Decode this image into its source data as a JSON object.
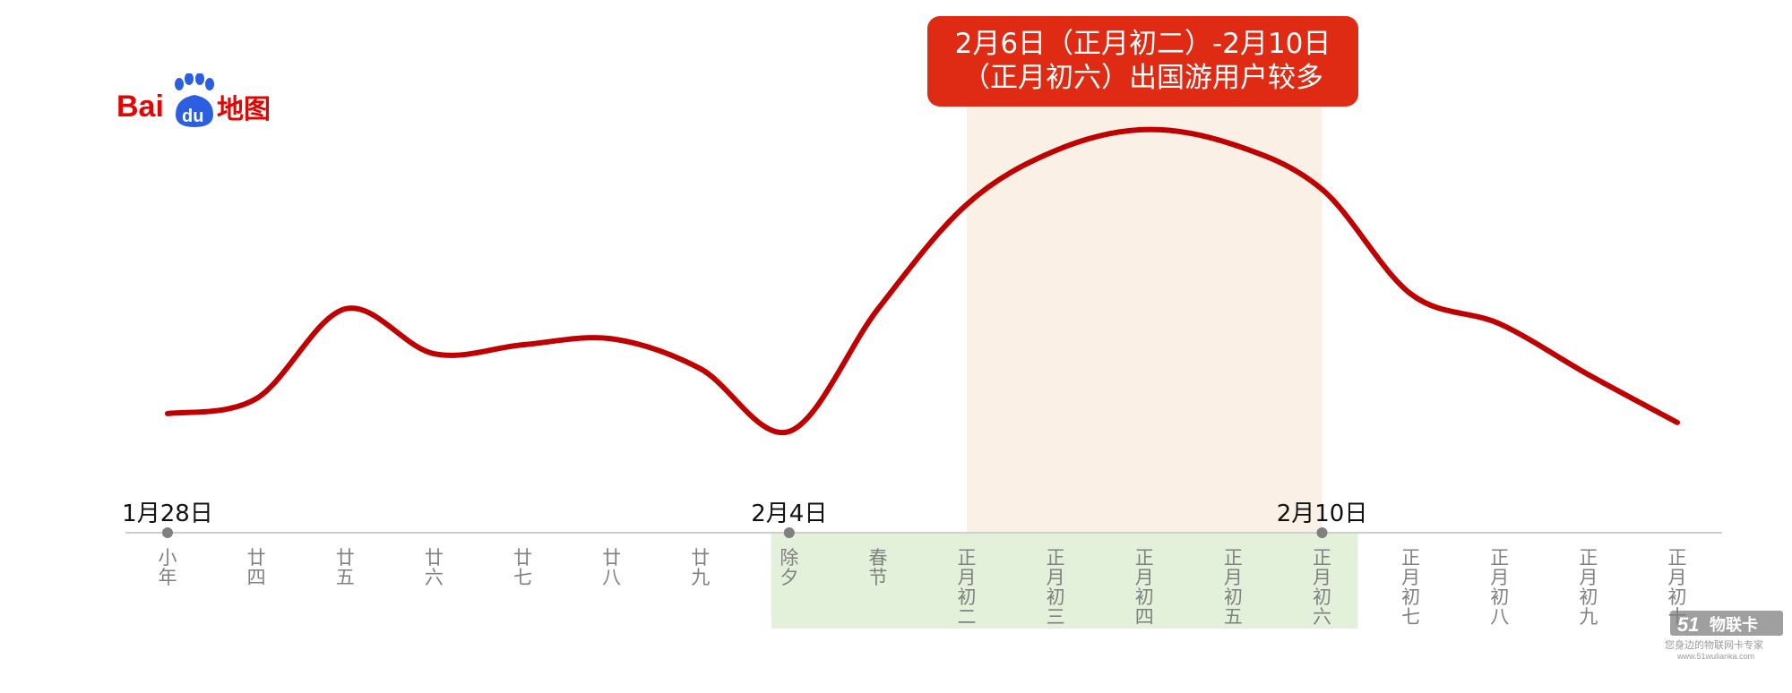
{
  "logo": {
    "brand": "Bai",
    "badge": "du",
    "suffix": "地图"
  },
  "callout": {
    "line1": "2月6日（正月初二）-2月10日",
    "line2": "（正月初六）出国游用户较多"
  },
  "watermark": {
    "badge": "51",
    "name": "物联卡",
    "slogan": "您身边的物联网卡专家",
    "url": "www.51wulianka.com"
  },
  "chart_data": {
    "type": "line",
    "title": "",
    "xlabel": "",
    "ylabel": "",
    "y_axis_shown": false,
    "grid": false,
    "categories": [
      "小年",
      "廿四",
      "廿五",
      "廿六",
      "廿七",
      "廿八",
      "廿九",
      "除夕",
      "春节",
      "正月初二",
      "正月初三",
      "正月初四",
      "正月初五",
      "正月初六",
      "正月初七",
      "正月初八",
      "正月初九",
      "正月初十"
    ],
    "date_markers": [
      {
        "index": 0,
        "label": "1月28日"
      },
      {
        "index": 7,
        "label": "2月4日"
      },
      {
        "index": 13,
        "label": "2月10日"
      }
    ],
    "series": [
      {
        "values": [
          0.05,
          0.1,
          0.4,
          0.25,
          0.28,
          0.3,
          0.2,
          -0.01,
          0.4,
          0.75,
          0.93,
          1.0,
          0.95,
          0.8,
          0.45,
          0.35,
          0.18,
          0.02
        ],
        "color": "#c00000"
      }
    ],
    "ylim": [
      -0.1,
      1.05
    ],
    "highlight_band": {
      "from": "正月初二",
      "to": "正月初六",
      "color": "#fbf0e6"
    },
    "holiday_band": {
      "from": "除夕",
      "to": "正月初六",
      "color": "#e3f1db"
    },
    "colors": {
      "line": "#c00000",
      "axis": "#cfcfcf",
      "marker": "#808080",
      "tick_text": "#808080",
      "callout": "#df2a14"
    }
  }
}
